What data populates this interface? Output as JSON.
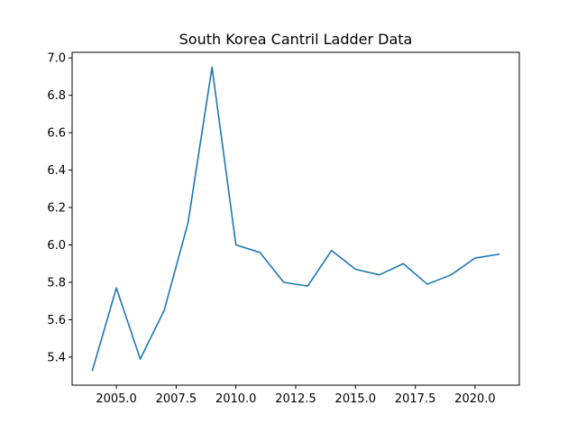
{
  "chart_data": {
    "type": "line",
    "title": "South Korea Cantril Ladder Data",
    "xlabel": "",
    "ylabel": "",
    "xlim": [
      2003.15,
      2021.85
    ],
    "ylim": [
      5.25,
      7.03
    ],
    "xticks": [
      2005.0,
      2007.5,
      2010.0,
      2012.5,
      2015.0,
      2017.5,
      2020.0
    ],
    "xtick_labels": [
      "2005.0",
      "2007.5",
      "2010.0",
      "2012.5",
      "2015.0",
      "2017.5",
      "2020.0"
    ],
    "yticks": [
      5.4,
      5.6,
      5.8,
      6.0,
      6.2,
      6.4,
      6.6,
      6.8,
      7.0
    ],
    "ytick_labels": [
      "5.4",
      "5.6",
      "5.8",
      "6.0",
      "6.2",
      "6.4",
      "6.6",
      "6.8",
      "7.0"
    ],
    "grid": false,
    "series": [
      {
        "color": "#1f77b4",
        "x": [
          2004,
          2005,
          2006,
          2007,
          2008,
          2009,
          2010,
          2011,
          2012,
          2013,
          2014,
          2015,
          2016,
          2017,
          2018,
          2019,
          2020,
          2021
        ],
        "y": [
          5.33,
          5.77,
          5.39,
          5.65,
          6.12,
          6.95,
          6.0,
          5.96,
          5.8,
          5.78,
          5.97,
          5.87,
          5.84,
          5.9,
          5.79,
          5.84,
          5.93,
          5.95
        ]
      }
    ]
  }
}
